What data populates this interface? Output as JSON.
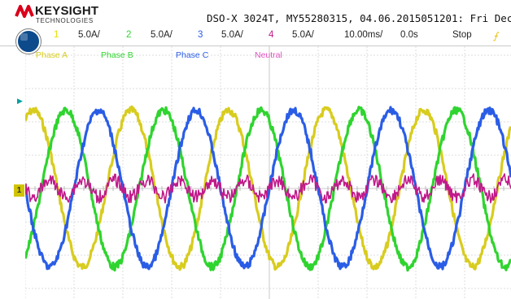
{
  "header": {
    "brand": "KEYSIGHT",
    "brand_sub": "TECHNOLOGIES",
    "title": "DSO-X 3024T, MY55280315, 04.06.2015051201: Fri Dec"
  },
  "channels": [
    {
      "num": "1",
      "scale": "5.0A/",
      "color": "#d8cc1e"
    },
    {
      "num": "2",
      "scale": "5.0A/",
      "color": "#2fd42f"
    },
    {
      "num": "3",
      "scale": "5.0A/",
      "color": "#2a5de6"
    },
    {
      "num": "4",
      "scale": "5.0A/",
      "color": "#c01a8a"
    }
  ],
  "timebase": "10.00ms/",
  "delay": "0.0s",
  "run_state": "Stop",
  "trigger_symbol": "⨍",
  "legend": [
    {
      "label": "Phase A",
      "color": "#d8cc1e"
    },
    {
      "label": "Phase B",
      "color": "#2fd42f"
    },
    {
      "label": "Phase C",
      "color": "#2a5de6"
    },
    {
      "label": "Neutral",
      "color": "#e050c0"
    }
  ],
  "ground_marker": "1",
  "waveforms": {
    "period_ms": 20,
    "timebase_ms_per_div": 10,
    "divisions_x": 10,
    "divisions_y": 8,
    "phase_amplitude_div": 2.35,
    "neutral_amplitude_div": 0.25,
    "phase_offsets_deg": [
      0,
      120,
      240
    ]
  }
}
